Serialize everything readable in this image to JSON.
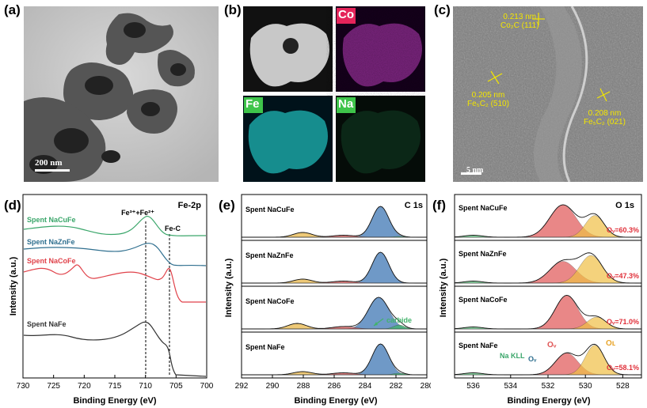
{
  "figure": {
    "panels": {
      "a": {
        "label": "(a)",
        "scale_bar": "200 nm"
      },
      "b": {
        "label": "(b)",
        "maps": [
          "Co",
          "Fe",
          "Na"
        ]
      },
      "c": {
        "label": "(c)",
        "scale_bar": "5 nm",
        "annotations": [
          {
            "line1": "0.213 nm",
            "line2": "Co₂C (111)"
          },
          {
            "line1": "0.205 nm",
            "line2": "Fe₅C₂ (510)"
          },
          {
            "line1": "0.208 nm",
            "line2": "Fe₅C₂ (021)"
          }
        ]
      },
      "d": {
        "label": "(d)"
      },
      "e": {
        "label": "(e)"
      },
      "f": {
        "label": "(f)"
      }
    },
    "colors": {
      "NaCuFe": "#3aa66a",
      "NaZnFe": "#2f6f8f",
      "NaCoFe": "#e0424a",
      "NaFe": "#333333",
      "c_main": "#3f78b5",
      "c_minor": "#e9b84a",
      "c_red": "#d95a5a",
      "c_carbide": "#42b36b",
      "o_vac": "#e05555",
      "o_lat": "#f0bf45",
      "o_green": "#5abf7a"
    }
  },
  "chart_data": [
    {
      "panel": "d",
      "type": "line",
      "title": "Fe-2p",
      "xlabel": "Binding Energy (eV)",
      "ylabel": "Intensity (a.u.)",
      "xlim": [
        730,
        700
      ],
      "xticks": [
        "730",
        "725",
        "720",
        "715",
        "710",
        "705",
        "700"
      ],
      "series": [
        {
          "name": "Spent NaCuFe"
        },
        {
          "name": "Spent NaZnFe"
        },
        {
          "name": "Spent NaCoFe"
        },
        {
          "name": "Spent NaFe"
        }
      ],
      "markers": [
        {
          "label": "Fe³⁺+Fe²⁺",
          "x": 710.5
        },
        {
          "label": "Fe-C",
          "x": 706.5
        }
      ]
    },
    {
      "panel": "e",
      "type": "area",
      "title": "C 1s",
      "xlabel": "Binding Energy (eV)",
      "ylabel": "Intensity (a.u.)",
      "xlim": [
        292,
        280
      ],
      "xticks": [
        "292",
        "290",
        "288",
        "286",
        "284",
        "282",
        "280"
      ],
      "series": [
        {
          "name": "Spent NaCuFe"
        },
        {
          "name": "Spent NaZnFe"
        },
        {
          "name": "Spent NaCoFe"
        },
        {
          "name": "Spent NaFe"
        }
      ],
      "annotation": "carbide"
    },
    {
      "panel": "f",
      "type": "area",
      "title": "O 1s",
      "xlabel": "Binding Energy (eV)",
      "ylabel": "Intensity (a.u.)",
      "xlim": [
        537,
        527
      ],
      "xticks": [
        "536",
        "534",
        "532",
        "530",
        "528"
      ],
      "series": [
        {
          "name": "Spent NaCuFe",
          "ov_ratio": "Oᵥ=60.3%"
        },
        {
          "name": "Spent NaZnFe",
          "ov_ratio": "Oᵥ=47.3%"
        },
        {
          "name": "Spent NaCoFe",
          "ov_ratio": "Oᵥ=71.0%"
        },
        {
          "name": "Spent NaFe",
          "ov_ratio": "Oᵥ=58.1%"
        }
      ],
      "peak_labels": {
        "ov": "Oᵥ",
        "ol": "Oʟ",
        "na_kll": "Na KLL",
        "ov_small": "Oᵥ"
      }
    }
  ]
}
